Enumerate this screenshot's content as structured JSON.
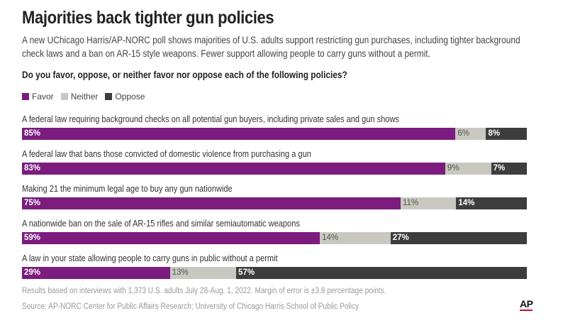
{
  "header": {
    "title": "Majorities back tighter gun policies",
    "subtitle": "A new UChicago Harris/AP-NORC poll shows majorities of U.S. adults support restricting gun purchases, including tighter background check laws and a ban on AR-15 style weapons. Fewer support allowing people to carry guns without a permit.",
    "question": "Do you favor, oppose, or neither favor nor oppose each of the following policies?"
  },
  "colors": {
    "favor": "#7b1c7e",
    "neither": "#c8c8c0",
    "oppose": "#3d3d3d"
  },
  "legend": [
    {
      "key": "favor",
      "label": "Favor"
    },
    {
      "key": "neither",
      "label": "Neither"
    },
    {
      "key": "oppose",
      "label": "Oppose"
    }
  ],
  "chart_data": {
    "type": "bar",
    "orientation": "horizontal",
    "stacked": true,
    "categories": [
      "A federal law requiring background checks on all potential gun buyers, including private sales and gun shows",
      "A federal law that bans those convicted of domestic violence from purchasing a gun",
      "Making 21 the minimum legal age to buy any gun nationwide",
      "A nationwide ban on the sale of AR-15 rifles and similar semiautomatic weapons",
      "A law in your state allowing people to carry guns in public without a permit"
    ],
    "series": [
      {
        "name": "Favor",
        "key": "favor",
        "values": [
          85,
          83,
          75,
          59,
          29
        ],
        "labels": [
          "85%",
          "83%",
          "75%",
          "59%",
          "29%"
        ]
      },
      {
        "name": "Neither",
        "key": "neither",
        "values": [
          6,
          9,
          11,
          14,
          13
        ],
        "labels": [
          "6%",
          "9%",
          "11%",
          "14%",
          "13%"
        ]
      },
      {
        "name": "Oppose",
        "key": "oppose",
        "values": [
          8,
          7,
          14,
          27,
          57
        ],
        "labels": [
          "8%",
          "7%",
          "14%",
          "27%",
          "57%"
        ]
      }
    ],
    "xlim": [
      0,
      100
    ],
    "legend_position": "top-left",
    "grid": false
  },
  "footer": {
    "note": "Results based on interviews with 1,373 U.S. adults July 28-Aug. 1, 2022. Margin of error is ±3.8 percentage points.",
    "source": "Source: AP-NORC Center for Public Affairs Research; University of Chicago Harris School of Public Policy",
    "logo": "AP"
  }
}
